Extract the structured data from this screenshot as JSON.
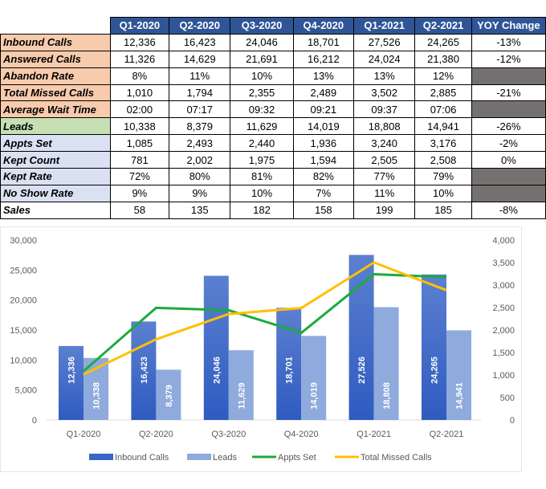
{
  "table": {
    "headers": [
      "Q1-2020",
      "Q2-2020",
      "Q3-2020",
      "Q4-2020",
      "Q1-2021",
      "Q2-2021",
      "YOY Change"
    ],
    "rows": [
      {
        "label": "Inbound Calls",
        "group": "orange",
        "values": [
          "12,336",
          "16,423",
          "24,046",
          "18,701",
          "27,526",
          "24,265",
          "-13%"
        ]
      },
      {
        "label": "Answered Calls",
        "group": "orange",
        "values": [
          "11,326",
          "14,629",
          "21,691",
          "16,212",
          "24,024",
          "21,380",
          "-12%"
        ]
      },
      {
        "label": "Abandon Rate",
        "group": "orange",
        "values": [
          "8%",
          "11%",
          "10%",
          "13%",
          "13%",
          "12%",
          ""
        ]
      },
      {
        "label": "Total Missed Calls",
        "group": "orange",
        "values": [
          "1,010",
          "1,794",
          "2,355",
          "2,489",
          "3,502",
          "2,885",
          "-21%"
        ]
      },
      {
        "label": "Average Wait Time",
        "group": "orange",
        "values": [
          "02:00",
          "07:17",
          "09:32",
          "09:21",
          "09:37",
          "07:06",
          ""
        ]
      },
      {
        "label": "Leads",
        "group": "green",
        "values": [
          "10,338",
          "8,379",
          "11,629",
          "14,019",
          "18,808",
          "14,941",
          "-26%"
        ]
      },
      {
        "label": "Appts Set",
        "group": "lav",
        "values": [
          "1,085",
          "2,493",
          "2,440",
          "1,936",
          "3,240",
          "3,176",
          "-2%"
        ]
      },
      {
        "label": "Kept Count",
        "group": "lav",
        "values": [
          "781",
          "2,002",
          "1,975",
          "1,594",
          "2,505",
          "2,508",
          "0%"
        ]
      },
      {
        "label": "Kept Rate",
        "group": "lav",
        "values": [
          "72%",
          "80%",
          "81%",
          "82%",
          "77%",
          "79%",
          ""
        ]
      },
      {
        "label": "No Show Rate",
        "group": "lav",
        "values": [
          "9%",
          "9%",
          "10%",
          "7%",
          "11%",
          "10%",
          ""
        ]
      },
      {
        "label": "Sales",
        "group": "none",
        "values": [
          "58",
          "135",
          "182",
          "158",
          "199",
          "185",
          "-8%"
        ]
      }
    ],
    "colors": {
      "header": "#2F5597",
      "orange": "#F8CBAD",
      "green": "#C6E0B4",
      "lav": "#D9E1F2",
      "grey": "#767171"
    }
  },
  "chart_data": {
    "type": "bar",
    "categories": [
      "Q1-2020",
      "Q2-2020",
      "Q3-2020",
      "Q4-2020",
      "Q1-2021",
      "Q2-2021"
    ],
    "y_left": {
      "range": [
        0,
        30000
      ],
      "ticks": [
        "0",
        "5,000",
        "10,000",
        "15,000",
        "20,000",
        "25,000",
        "30,000"
      ]
    },
    "y_right": {
      "range": [
        0,
        4000
      ],
      "ticks": [
        "0",
        "500",
        "1,000",
        "1,500",
        "2,000",
        "2,500",
        "3,000",
        "3,500",
        "4,000"
      ]
    },
    "series": [
      {
        "name": "Inbound Calls",
        "kind": "bar",
        "axis": "left",
        "color": "#3A66C4",
        "values": [
          12336,
          16423,
          24046,
          18701,
          27526,
          24265
        ],
        "labels": [
          "12,336",
          "16,423",
          "24,046",
          "18,701",
          "27,526",
          "24,265"
        ]
      },
      {
        "name": "Leads",
        "kind": "bar",
        "axis": "left",
        "color": "#8FAADC",
        "values": [
          10338,
          8379,
          11629,
          14019,
          18808,
          14941
        ],
        "labels": [
          "10,338",
          "8,379",
          "11,629",
          "14,019",
          "18,808",
          "14,941"
        ]
      },
      {
        "name": "Appts Set",
        "kind": "line",
        "axis": "right",
        "color": "#1DAA3C",
        "values": [
          1085,
          2493,
          2440,
          1936,
          3240,
          3176
        ]
      },
      {
        "name": "Total Missed Calls",
        "kind": "line",
        "axis": "right",
        "color": "#FFC000",
        "values": [
          1010,
          1794,
          2355,
          2489,
          3502,
          2885
        ]
      }
    ],
    "legend": "bottom",
    "grid": false
  }
}
